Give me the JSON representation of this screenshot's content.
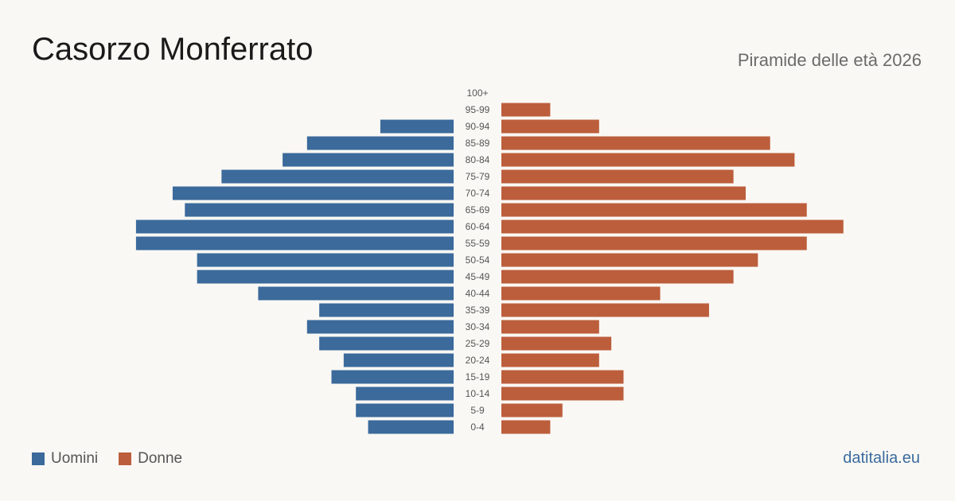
{
  "title": "Casorzo Monferrato",
  "subtitle": "Piramide delle età 2026",
  "brand": "datitalia.eu",
  "colors": {
    "men": "#3b6a9b",
    "women": "#bc5e3c",
    "background": "#faf8f4"
  },
  "chart_data": {
    "type": "bar",
    "orientation": "horizontal-butterfly",
    "categories": [
      "100+",
      "95-99",
      "90-94",
      "85-89",
      "80-84",
      "75-79",
      "70-74",
      "65-69",
      "60-64",
      "55-59",
      "50-54",
      "45-49",
      "40-44",
      "35-39",
      "30-34",
      "25-29",
      "20-24",
      "15-19",
      "10-14",
      "5-9",
      "0-4"
    ],
    "series": [
      {
        "name": "Uomini",
        "values": [
          0,
          0,
          6,
          12,
          14,
          19,
          23,
          22,
          26,
          26,
          21,
          21,
          16,
          11,
          12,
          11,
          9,
          10,
          8,
          8,
          7
        ]
      },
      {
        "name": "Donne",
        "values": [
          0,
          4,
          8,
          22,
          24,
          19,
          20,
          25,
          28,
          25,
          21,
          19,
          13,
          17,
          8,
          9,
          8,
          10,
          10,
          5,
          4
        ]
      }
    ],
    "legend": [
      "Uomini",
      "Donne"
    ],
    "legend_position": "bottom-left",
    "grid": false
  }
}
